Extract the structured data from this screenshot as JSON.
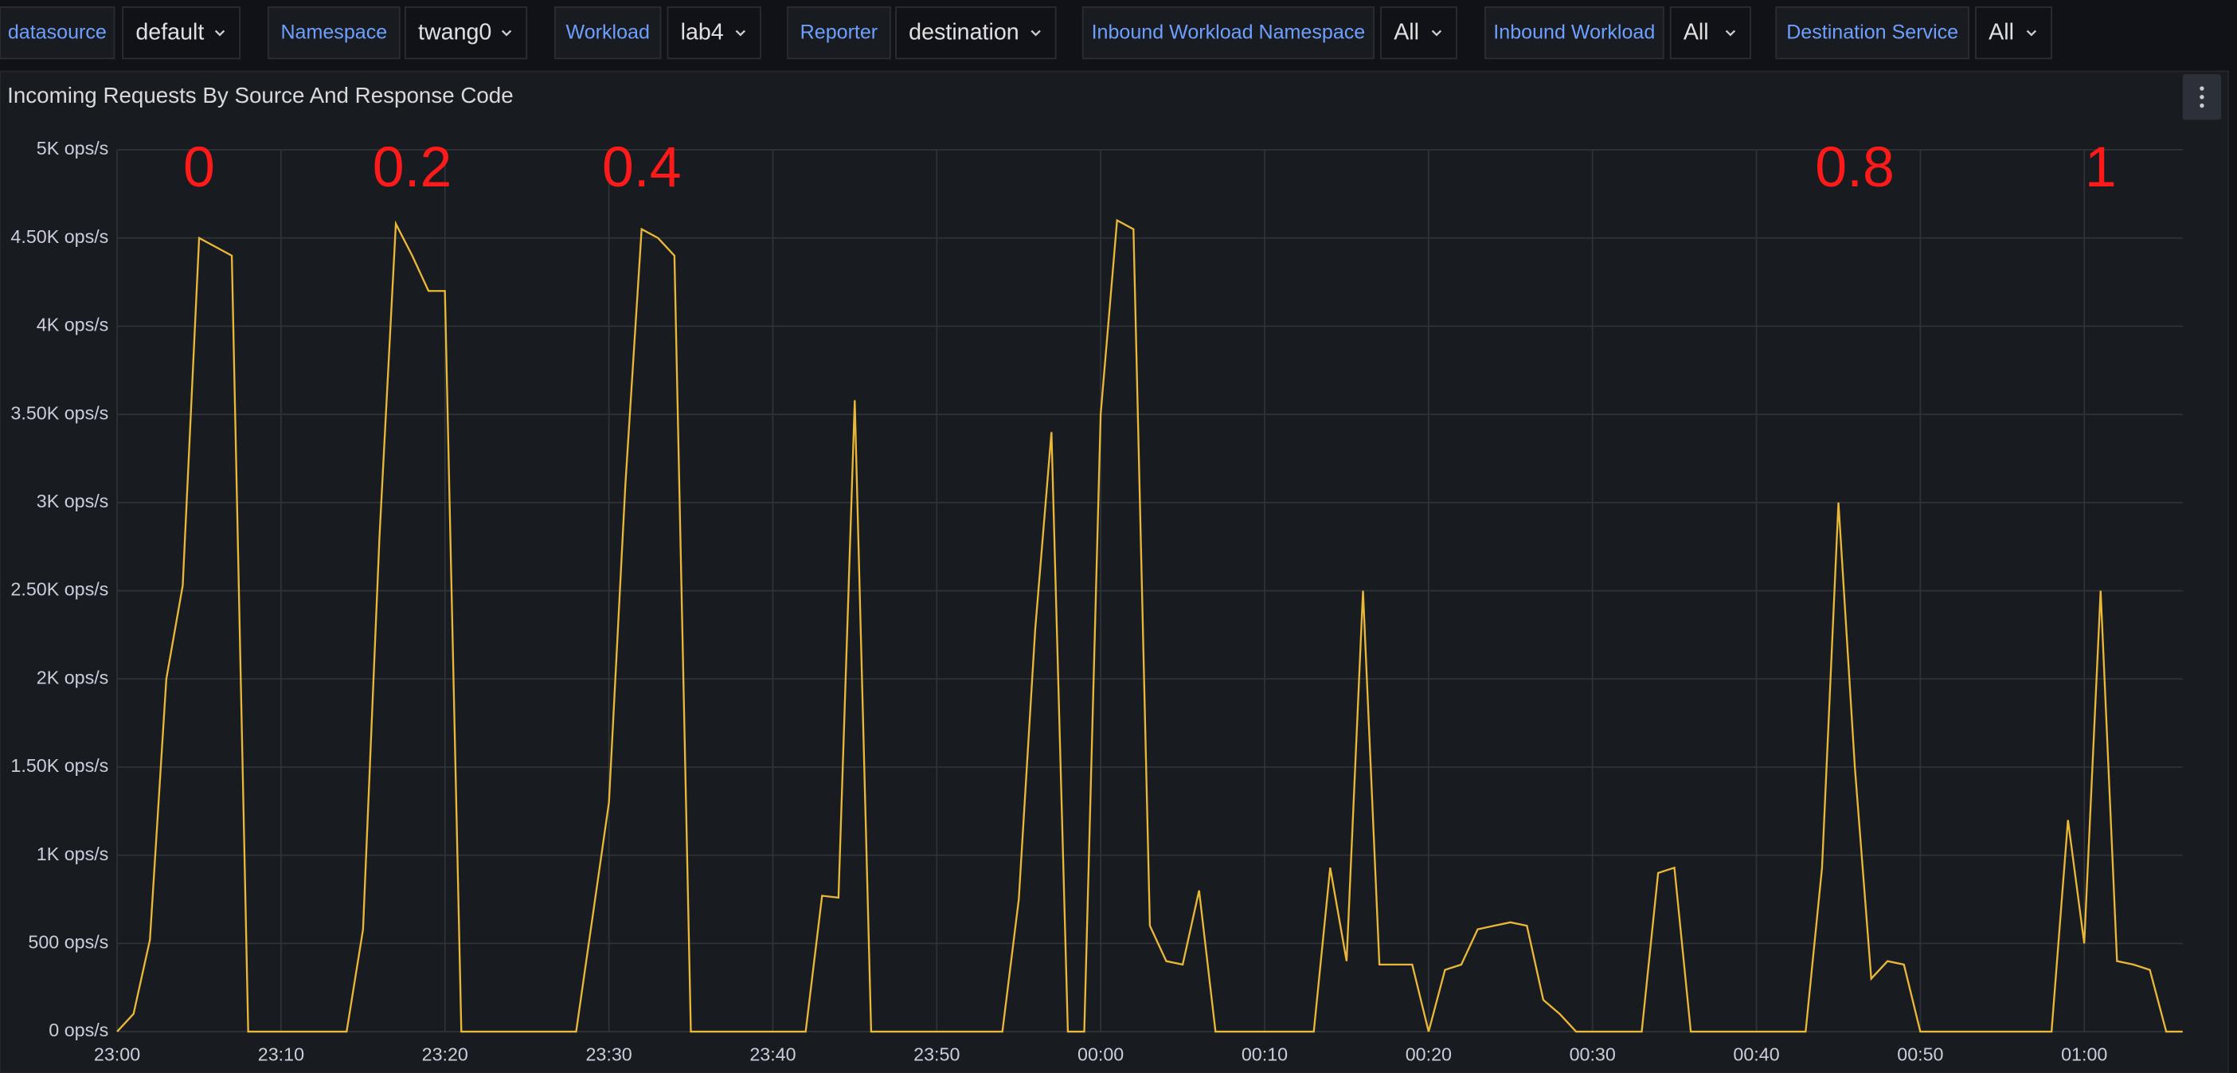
{
  "variables": [
    {
      "label": "datasource",
      "value": "default"
    },
    {
      "label": "Namespace",
      "value": "twang0"
    },
    {
      "label": "Workload",
      "value": "lab4"
    },
    {
      "label": "Reporter",
      "value": "destination"
    },
    {
      "label": "Inbound Workload Namespace",
      "value": "All"
    },
    {
      "label": "Inbound Workload",
      "value": "All"
    },
    {
      "label": "Destination Service",
      "value": "All"
    }
  ],
  "chart_data": {
    "type": "line",
    "title": "Incoming Requests By Source And Response Code",
    "x": [
      "23:00",
      "23:01",
      "23:02",
      "23:03",
      "23:04",
      "23:05",
      "23:06",
      "23:07",
      "23:08",
      "23:09",
      "23:10",
      "23:11",
      "23:12",
      "23:13",
      "23:14",
      "23:15",
      "23:16",
      "23:17",
      "23:18",
      "23:19",
      "23:20",
      "23:21",
      "23:22",
      "23:23",
      "23:24",
      "23:25",
      "23:26",
      "23:27",
      "23:28",
      "23:29",
      "23:30",
      "23:31",
      "23:32",
      "23:33",
      "23:34",
      "23:35",
      "23:36",
      "23:37",
      "23:38",
      "23:39",
      "23:40",
      "23:41",
      "23:42",
      "23:43",
      "23:44",
      "23:45",
      "23:46",
      "23:47",
      "23:48",
      "23:49",
      "23:50",
      "23:51",
      "23:52",
      "23:53",
      "23:54",
      "23:55",
      "23:56",
      "23:57",
      "23:58",
      "23:59",
      "00:00",
      "00:01",
      "00:02",
      "00:03",
      "00:04",
      "00:05",
      "00:06",
      "00:07",
      "00:08",
      "00:09",
      "00:10",
      "00:11",
      "00:12",
      "00:13",
      "00:14",
      "00:15",
      "00:16",
      "00:17",
      "00:18",
      "00:19",
      "00:20",
      "00:21",
      "00:22",
      "00:23",
      "00:24",
      "00:25",
      "00:26",
      "00:27",
      "00:28",
      "00:29",
      "00:30",
      "00:31",
      "00:32",
      "00:33",
      "00:34",
      "00:35",
      "00:36",
      "00:37",
      "00:38",
      "00:39",
      "00:40",
      "00:41",
      "00:42",
      "00:43",
      "00:44",
      "00:45",
      "00:46",
      "00:47",
      "00:48",
      "00:49",
      "00:50",
      "00:51",
      "00:52",
      "00:53",
      "00:54",
      "00:55",
      "00:56",
      "00:57",
      "00:58",
      "00:59",
      "01:00",
      "01:01",
      "01:02",
      "01:03",
      "01:04",
      "01:05",
      "01:06"
    ],
    "series": [
      {
        "color": "#eab839",
        "values": [
          0,
          100,
          520,
          2000,
          2530,
          4500,
          4450,
          4400,
          0,
          0,
          0,
          0,
          0,
          0,
          0,
          580,
          2800,
          4580,
          4400,
          4200,
          4200,
          0,
          0,
          0,
          0,
          0,
          0,
          0,
          0,
          650,
          1300,
          3100,
          4550,
          4500,
          4400,
          0,
          0,
          0,
          0,
          0,
          0,
          0,
          0,
          770,
          760,
          3580,
          0,
          0,
          0,
          0,
          0,
          0,
          0,
          0,
          0,
          750,
          2280,
          3400,
          0,
          0,
          3500,
          4600,
          4550,
          600,
          400,
          380,
          800,
          0,
          0,
          0,
          0,
          0,
          0,
          0,
          930,
          400,
          2500,
          380,
          380,
          380,
          0,
          350,
          380,
          580,
          600,
          620,
          600,
          180,
          100,
          0,
          0,
          0,
          0,
          0,
          900,
          930,
          0,
          0,
          0,
          0,
          0,
          0,
          0,
          0,
          930,
          3000,
          1500,
          300,
          400,
          380,
          0,
          0,
          0,
          0,
          0,
          0,
          0,
          0,
          0,
          1200,
          500,
          2500,
          400,
          380,
          350,
          0,
          0
        ]
      }
    ],
    "xlim": [
      "23:00",
      "01:06"
    ],
    "xticks": [
      "23:00",
      "23:10",
      "23:20",
      "23:30",
      "23:40",
      "23:50",
      "00:00",
      "00:10",
      "00:20",
      "00:30",
      "00:40",
      "00:50",
      "01:00"
    ],
    "ylim": [
      0,
      5000
    ],
    "yticks": [
      {
        "value": 0,
        "label": "0 ops/s"
      },
      {
        "value": 500,
        "label": "500 ops/s"
      },
      {
        "value": 1000,
        "label": "1K ops/s"
      },
      {
        "value": 1500,
        "label": "1.50K ops/s"
      },
      {
        "value": 2000,
        "label": "2K ops/s"
      },
      {
        "value": 2500,
        "label": "2.50K ops/s"
      },
      {
        "value": 3000,
        "label": "3K ops/s"
      },
      {
        "value": 3500,
        "label": "3.50K ops/s"
      },
      {
        "value": 4000,
        "label": "4K ops/s"
      },
      {
        "value": 4500,
        "label": "4.50K ops/s"
      },
      {
        "value": 5000,
        "label": "5K ops/s"
      }
    ],
    "grid": true,
    "annotations": [
      {
        "text": "0",
        "x": "23:05"
      },
      {
        "text": "0.2",
        "x": "23:18"
      },
      {
        "text": "0.4",
        "x": "23:32"
      },
      {
        "text": "0.8",
        "x": "00:46"
      },
      {
        "text": "1",
        "x": "01:01"
      }
    ]
  }
}
